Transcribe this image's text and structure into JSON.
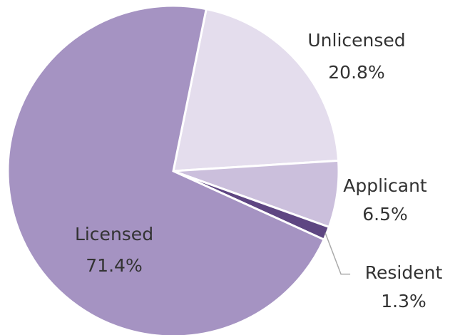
{
  "chart_data": {
    "type": "pie",
    "categories": [
      "Unlicensed",
      "Applicant",
      "Resident",
      "Licensed"
    ],
    "values": [
      20.8,
      6.5,
      1.3,
      71.4
    ],
    "value_labels": [
      "20.8%",
      "6.5%",
      "1.3%",
      "71.4%"
    ],
    "colors": [
      "#e4dded",
      "#cbbfdc",
      "#5e4682",
      "#a593c2"
    ]
  }
}
